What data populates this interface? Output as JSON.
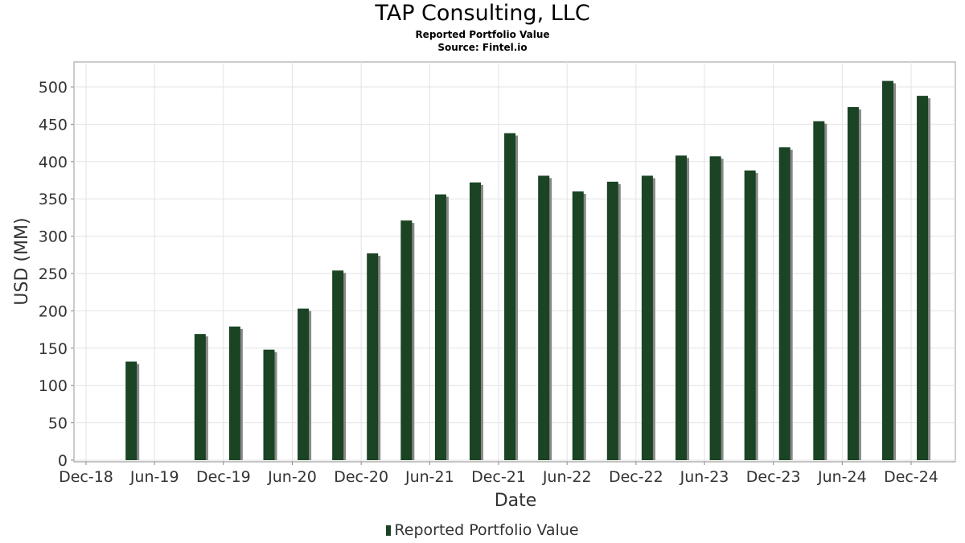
{
  "chart_data": {
    "type": "bar",
    "title": "TAP Consulting, LLC",
    "subtitle": "Reported Portfolio Value",
    "source": "Source: Fintel.io",
    "xlabel": "Date",
    "ylabel": "USD (MM)",
    "ylim": [
      0,
      530
    ],
    "y_ticks": [
      0,
      50,
      100,
      150,
      200,
      250,
      300,
      350,
      400,
      450,
      500
    ],
    "x_tick_labels": [
      "Dec-18",
      "Jun-19",
      "Dec-19",
      "Jun-20",
      "Dec-20",
      "Jun-21",
      "Dec-21",
      "Jun-22",
      "Dec-22",
      "Jun-23",
      "Dec-23",
      "Jun-24",
      "Dec-24"
    ],
    "grid": true,
    "legend_position": "bottom",
    "bar_color": "#1a4423",
    "shadow_color": "#888888",
    "series": [
      {
        "name": "Reported Portfolio Value",
        "points": [
          {
            "date": "2019-03-31",
            "value": 132
          },
          {
            "date": "2019-09-30",
            "value": 169
          },
          {
            "date": "2019-12-31",
            "value": 179
          },
          {
            "date": "2020-03-31",
            "value": 148
          },
          {
            "date": "2020-06-30",
            "value": 203
          },
          {
            "date": "2020-09-30",
            "value": 254
          },
          {
            "date": "2020-12-31",
            "value": 277
          },
          {
            "date": "2021-03-31",
            "value": 321
          },
          {
            "date": "2021-06-30",
            "value": 356
          },
          {
            "date": "2021-09-30",
            "value": 372
          },
          {
            "date": "2021-12-31",
            "value": 438
          },
          {
            "date": "2022-03-31",
            "value": 381
          },
          {
            "date": "2022-06-30",
            "value": 360
          },
          {
            "date": "2022-09-30",
            "value": 373
          },
          {
            "date": "2022-12-31",
            "value": 381
          },
          {
            "date": "2023-03-31",
            "value": 408
          },
          {
            "date": "2023-06-30",
            "value": 407
          },
          {
            "date": "2023-09-30",
            "value": 388
          },
          {
            "date": "2023-12-31",
            "value": 419
          },
          {
            "date": "2024-03-31",
            "value": 454
          },
          {
            "date": "2024-06-30",
            "value": 473
          },
          {
            "date": "2024-09-30",
            "value": 508
          },
          {
            "date": "2024-12-31",
            "value": 488
          }
        ]
      }
    ]
  }
}
